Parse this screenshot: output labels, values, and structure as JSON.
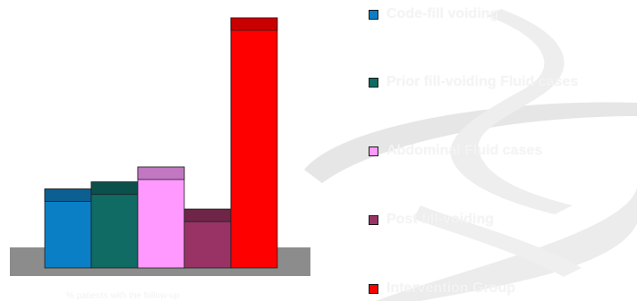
{
  "chart_data": {
    "type": "bar",
    "title": "",
    "xlabel": "",
    "ylabel": "",
    "grid": false,
    "ylim": [
      0,
      290
    ],
    "categories": [
      "Code-fill voiding",
      "Prior fill-voiding Fluid cases",
      "Abdominal Fluid cases",
      "Post fill-voiding",
      "Intervention Group"
    ],
    "values": [
      90,
      98,
      115,
      67,
      285
    ],
    "legend_position": "right",
    "colors": [
      "#0a7fc6",
      "#0f6b64",
      "#ff99ff",
      "#993366",
      "#ff0000"
    ],
    "cap_colors": [
      "#0b5f91",
      "#0b504a",
      "#c277c2",
      "#6e2548",
      "#c80000"
    ],
    "floor_color": "#8c8c8c",
    "footnote": "% patients with the follow-up"
  },
  "legend": {
    "items": [
      {
        "label": "Code-fill voiding",
        "color": "#0a7fc6"
      },
      {
        "label": "Prior fill-voiding Fluid cases",
        "color": "#0f6b64"
      },
      {
        "label": "Abdominal Fluid cases",
        "color": "#ff99ff"
      },
      {
        "label": "Post fill-voiding",
        "color": "#993366"
      },
      {
        "label": "Intervention Group",
        "color": "#ff0000"
      }
    ]
  }
}
